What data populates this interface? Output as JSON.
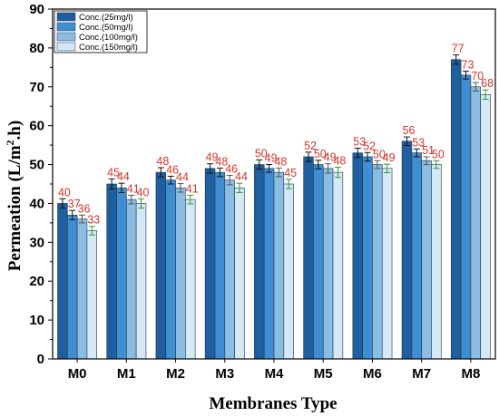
{
  "chart_data": {
    "type": "bar",
    "xlabel": "Membranes Type",
    "ylabel": "Permeation (L/m².h)",
    "ylabel_parts": {
      "main": "Permeation (L/m",
      "sup": "2",
      "rest": ".h)"
    },
    "ylim": [
      0,
      90
    ],
    "yticks": [
      "0",
      "10",
      "20",
      "30",
      "40",
      "50",
      "60",
      "70",
      "80",
      "90"
    ],
    "categories": [
      "M0",
      "M1",
      "M2",
      "M3",
      "M4",
      "M5",
      "M6",
      "M7",
      "M8"
    ],
    "series": [
      {
        "name": "Conc.(25mg/l)",
        "color": "#1f5fa0",
        "values": [
          40,
          45,
          48,
          49,
          50,
          52,
          53,
          56,
          77
        ],
        "errors": [
          1.2,
          1.3,
          1.2,
          1.2,
          1.2,
          1.2,
          1.2,
          1.1,
          1.2
        ]
      },
      {
        "name": "Conc.(50mg/l)",
        "color": "#3f8ed1",
        "values": [
          37,
          44,
          46,
          48,
          49,
          50,
          52,
          53,
          73
        ],
        "errors": [
          1.2,
          1.2,
          1.0,
          1.1,
          1.0,
          1.1,
          1.1,
          1.0,
          1.0
        ]
      },
      {
        "name": "Conc.(100mg/l)",
        "color": "#8bbde2",
        "values": [
          36,
          41,
          44,
          46,
          48,
          49,
          50,
          51,
          70
        ],
        "errors": [
          1.0,
          1.1,
          1.1,
          1.2,
          1.1,
          1.2,
          1.0,
          1.0,
          1.1
        ]
      },
      {
        "name": "Conc.(150mg/l)",
        "color": "#d4e8f5",
        "values": [
          33,
          40,
          41,
          44,
          45,
          48,
          49,
          50,
          68
        ],
        "errors": [
          1.1,
          1.2,
          1.1,
          1.2,
          1.2,
          1.3,
          1.1,
          1.0,
          1.2
        ]
      }
    ],
    "data_labels": [
      [
        "40",
        "45",
        "48",
        "49",
        "50",
        "52",
        "53",
        "56",
        "77"
      ],
      [
        "37",
        "44",
        "46",
        "48",
        "49",
        "50",
        "52",
        "53",
        "73"
      ],
      [
        "36",
        "41",
        "44",
        "46",
        "48",
        "49",
        "50",
        "51",
        "70"
      ],
      [
        "33",
        "40",
        "41",
        "44",
        "45",
        "48",
        "49",
        "50",
        "68"
      ]
    ],
    "error_bar_colors": [
      "#111111",
      "#111111",
      "#555555",
      "#2e9c2e"
    ],
    "data_label_color": "#d9342b",
    "legend": "top-left",
    "grid": false
  }
}
